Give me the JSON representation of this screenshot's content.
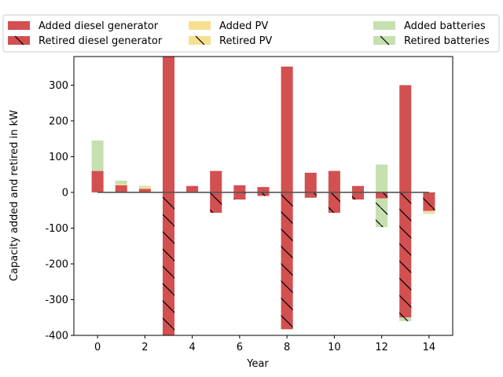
{
  "chart_data": {
    "type": "bar",
    "xlabel": "Year",
    "ylabel": "Capacity added and retired in kW",
    "xlim": [
      -1,
      15
    ],
    "ylim": [
      -400,
      380
    ],
    "x_ticks": [
      0,
      2,
      4,
      6,
      8,
      10,
      12,
      14
    ],
    "y_ticks": [
      -400,
      -300,
      -200,
      -100,
      0,
      100,
      200,
      300
    ],
    "x": [
      0,
      1,
      2,
      3,
      4,
      5,
      6,
      7,
      8,
      9,
      10,
      11,
      12,
      13,
      14
    ],
    "legend": {
      "placement": "top",
      "columns": 3
    },
    "colors": {
      "diesel": "#d35050",
      "pv": "#f8df90",
      "batteries": "#c6e0b0",
      "zero_line": "#555555",
      "hatch": "#000000"
    },
    "series": [
      {
        "name": "Added diesel generator",
        "key": "diesel",
        "kind": "added",
        "values": [
          60,
          20,
          10,
          385,
          18,
          60,
          20,
          15,
          352,
          55,
          60,
          18,
          0,
          300,
          0
        ]
      },
      {
        "name": "Added PV",
        "key": "pv",
        "kind": "added",
        "values": [
          0,
          3,
          5,
          0,
          0,
          0,
          0,
          0,
          0,
          0,
          0,
          0,
          0,
          0,
          0
        ]
      },
      {
        "name": "Added batteries",
        "key": "batteries",
        "kind": "added",
        "values": [
          85,
          10,
          3,
          0,
          0,
          0,
          0,
          0,
          0,
          0,
          0,
          0,
          78,
          0,
          0
        ]
      },
      {
        "name": "Retired diesel generator",
        "key": "diesel",
        "kind": "retired",
        "values": [
          0,
          0,
          0,
          -400,
          0,
          -57,
          -20,
          -10,
          -383,
          -15,
          -57,
          -20,
          -17,
          -350,
          -52
        ]
      },
      {
        "name": "Retired PV",
        "key": "pv",
        "kind": "retired",
        "values": [
          0,
          0,
          0,
          0,
          0,
          0,
          0,
          0,
          0,
          0,
          0,
          0,
          0,
          0,
          -5
        ]
      },
      {
        "name": "Retired batteries",
        "key": "batteries",
        "kind": "retired",
        "values": [
          0,
          0,
          0,
          0,
          0,
          0,
          0,
          0,
          0,
          0,
          0,
          0,
          -80,
          -10,
          -3
        ]
      }
    ]
  }
}
